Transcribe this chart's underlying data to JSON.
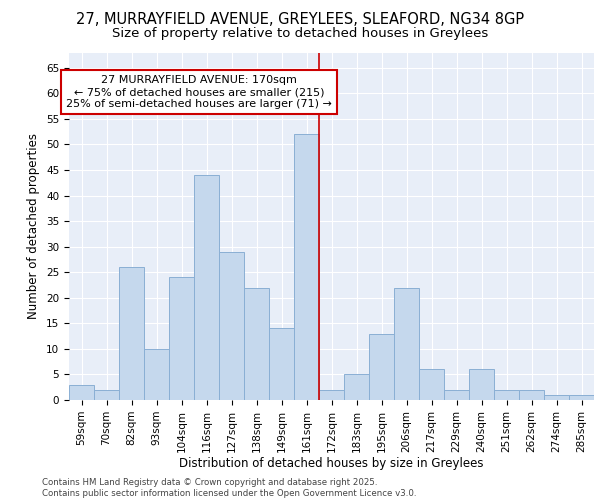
{
  "title_line1": "27, MURRAYFIELD AVENUE, GREYLEES, SLEAFORD, NG34 8GP",
  "title_line2": "Size of property relative to detached houses in Greylees",
  "xlabel": "Distribution of detached houses by size in Greylees",
  "ylabel": "Number of detached properties",
  "footer_line1": "Contains HM Land Registry data © Crown copyright and database right 2025.",
  "footer_line2": "Contains public sector information licensed under the Open Government Licence v3.0.",
  "categories": [
    "59sqm",
    "70sqm",
    "82sqm",
    "93sqm",
    "104sqm",
    "116sqm",
    "127sqm",
    "138sqm",
    "149sqm",
    "161sqm",
    "172sqm",
    "183sqm",
    "195sqm",
    "206sqm",
    "217sqm",
    "229sqm",
    "240sqm",
    "251sqm",
    "262sqm",
    "274sqm",
    "285sqm"
  ],
  "values": [
    3,
    2,
    26,
    10,
    24,
    44,
    29,
    22,
    14,
    52,
    2,
    5,
    13,
    22,
    6,
    2,
    6,
    2,
    2,
    1,
    1
  ],
  "bar_color": "#c5d8ed",
  "bar_edge_color": "#8aafd4",
  "vline_x_index": 9.5,
  "annotation_text": "27 MURRAYFIELD AVENUE: 170sqm\n← 75% of detached houses are smaller (215)\n25% of semi-detached houses are larger (71) →",
  "annotation_box_color": "#ffffff",
  "annotation_box_edge": "#cc0000",
  "vline_color": "#cc0000",
  "ylim": [
    0,
    68
  ],
  "yticks": [
    0,
    5,
    10,
    15,
    20,
    25,
    30,
    35,
    40,
    45,
    50,
    55,
    60,
    65
  ],
  "background_color": "#e8eef8",
  "grid_color": "#ffffff",
  "title_fontsize": 10.5,
  "subtitle_fontsize": 9.5,
  "axis_label_fontsize": 8.5,
  "tick_fontsize": 7.5,
  "annotation_fontsize": 8,
  "footer_fontsize": 6.2
}
